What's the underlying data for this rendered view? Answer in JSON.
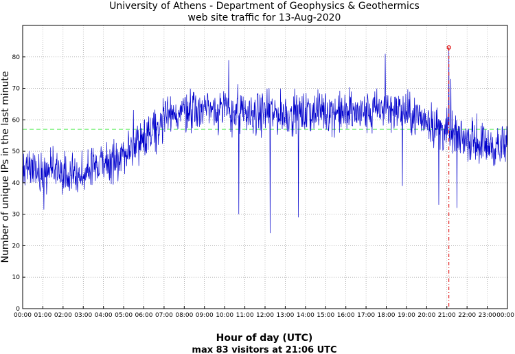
{
  "chart_data": {
    "type": "line",
    "title": "University of Athens - Department of Geophysics & Geothermics",
    "subtitle": "web site traffic for 13-Aug-2020",
    "xlabel": "Hour of day (UTC)",
    "ylabel": "Number of unique IPs in the last minute",
    "footer": "max 83 visitors at 21:06 UTC",
    "x_ticks": [
      "00:00",
      "01:00",
      "02:00",
      "03:00",
      "04:00",
      "05:00",
      "06:00",
      "07:00",
      "08:00",
      "09:00",
      "10:00",
      "11:00",
      "12:00",
      "13:00",
      "14:00",
      "15:00",
      "16:00",
      "17:00",
      "18:00",
      "19:00",
      "20:00",
      "21:00",
      "22:00",
      "23:00",
      "00:00"
    ],
    "y_ticks": [
      0,
      10,
      20,
      30,
      40,
      50,
      60,
      70,
      80
    ],
    "xlim_hours": [
      0,
      24
    ],
    "ylim": [
      0,
      90
    ],
    "grid": true,
    "average_line": {
      "value": 57,
      "color": "#55ee55"
    },
    "max_marker": {
      "time": "21:06",
      "hour": 21.1,
      "value": 83,
      "color": "#dd0000"
    },
    "series": [
      {
        "color": "#0000cc",
        "hourly_level": [
          46,
          44,
          42,
          43,
          46,
          49,
          55,
          60,
          63,
          64,
          63,
          62,
          62,
          62,
          62,
          63,
          62,
          62,
          64,
          62,
          60,
          56,
          54,
          52,
          51
        ],
        "dips": [
          {
            "hour": 10.7,
            "value": 30
          },
          {
            "hour": 12.25,
            "value": 24
          },
          {
            "hour": 13.65,
            "value": 29
          },
          {
            "hour": 18.8,
            "value": 39
          },
          {
            "hour": 20.6,
            "value": 33
          },
          {
            "hour": 21.5,
            "value": 32
          }
        ],
        "spikes": [
          {
            "hour": 10.2,
            "value": 79
          },
          {
            "hour": 17.95,
            "value": 81
          },
          {
            "hour": 21.1,
            "value": 83
          },
          {
            "hour": 21.2,
            "value": 73
          }
        ]
      }
    ]
  },
  "colors": {
    "axis": "#000000",
    "grid": "#888888",
    "line": "#0000cc"
  }
}
